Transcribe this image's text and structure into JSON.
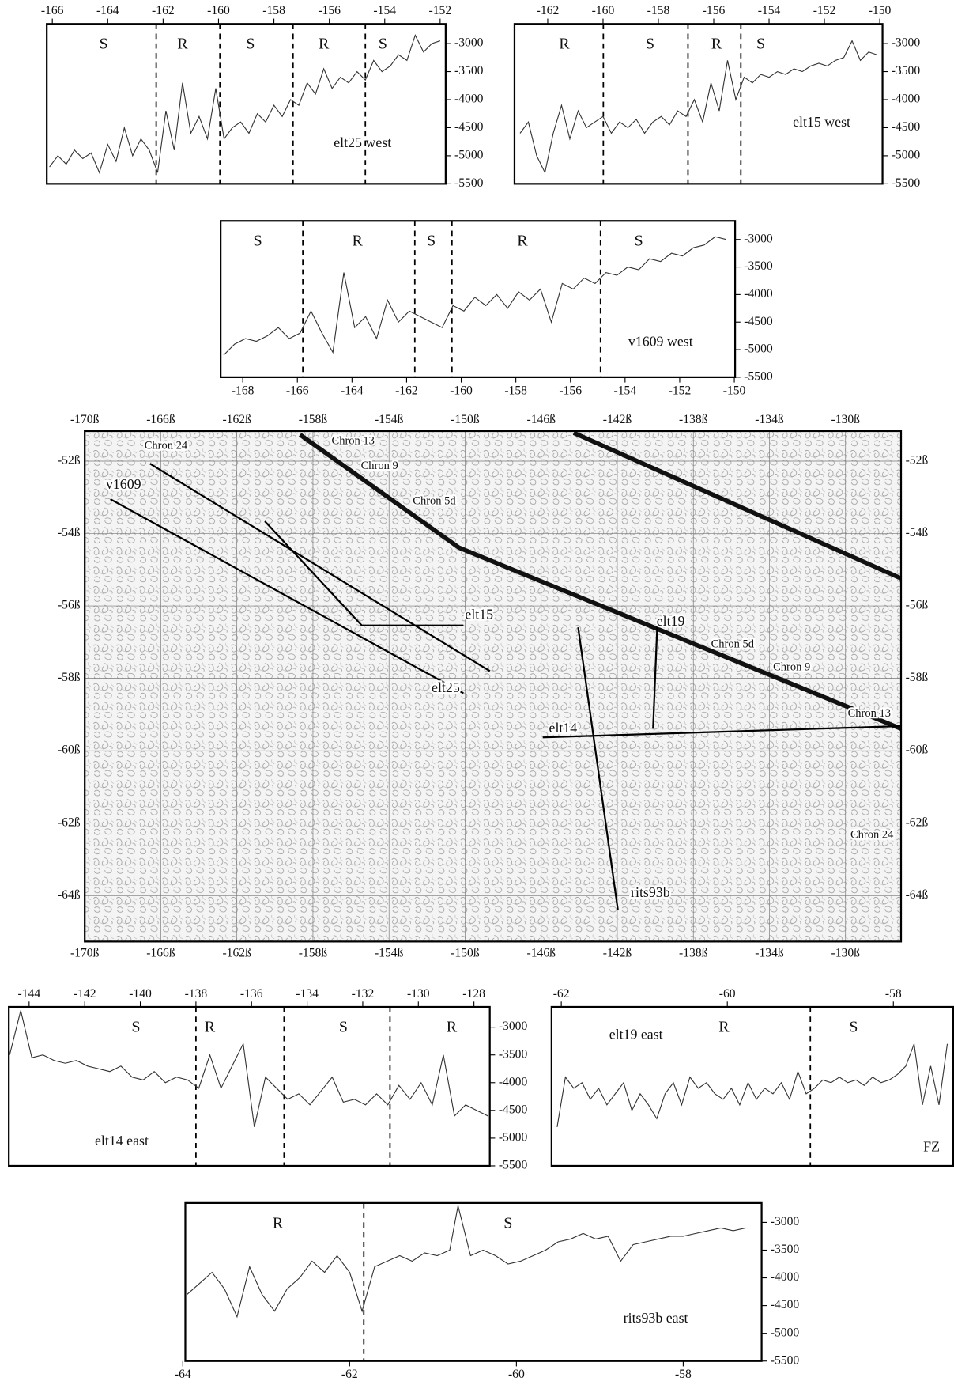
{
  "chart_data": [
    {
      "type": "line",
      "x_axis": "top",
      "color": "#333333",
      "xlim": [
        -166.2,
        -151.8
      ],
      "ylim": [
        -5500,
        -2650
      ],
      "xticks": [
        -166,
        -164,
        -162,
        -160,
        -158,
        -156,
        -154,
        -152
      ],
      "yticks": [
        -3000,
        -3500,
        -4000,
        -4500,
        -5000,
        -5500
      ],
      "boundaries": [
        -162.25,
        -159.95,
        -157.31,
        -154.7
      ],
      "segments": [
        {
          "text": "S",
          "x": -164.15
        },
        {
          "text": "R",
          "x": -161.3
        },
        {
          "text": "S",
          "x": -158.85
        },
        {
          "text": "R",
          "x": -156.2
        },
        {
          "text": "S",
          "x": -154.07
        }
      ],
      "label": {
        "text": "elt25 west",
        "x": -154.8,
        "y": -4790
      },
      "x": [
        -166.1,
        -165.8,
        -165.5,
        -165.2,
        -164.9,
        -164.6,
        -164.3,
        -164.0,
        -163.7,
        -163.4,
        -163.1,
        -162.8,
        -162.5,
        -162.2,
        -161.9,
        -161.6,
        -161.3,
        -161.0,
        -160.7,
        -160.4,
        -160.1,
        -159.8,
        -159.5,
        -159.2,
        -158.9,
        -158.6,
        -158.3,
        -158.0,
        -157.7,
        -157.4,
        -157.1,
        -156.8,
        -156.5,
        -156.2,
        -155.9,
        -155.6,
        -155.3,
        -155.0,
        -154.7,
        -154.4,
        -154.1,
        -153.8,
        -153.5,
        -153.2,
        -152.9,
        -152.6,
        -152.3,
        -152.0
      ],
      "values": [
        -5200,
        -5000,
        -5150,
        -4900,
        -5050,
        -4950,
        -5300,
        -4800,
        -5100,
        -4500,
        -5000,
        -4700,
        -4900,
        -5300,
        -4200,
        -4900,
        -3700,
        -4600,
        -4300,
        -4700,
        -3800,
        -4700,
        -4500,
        -4400,
        -4600,
        -4250,
        -4400,
        -4100,
        -4300,
        -4000,
        -4100,
        -3700,
        -3900,
        -3450,
        -3800,
        -3600,
        -3700,
        -3500,
        -3650,
        -3300,
        -3500,
        -3400,
        -3200,
        -3300,
        -2850,
        -3150,
        -3000,
        -2950
      ]
    },
    {
      "type": "line",
      "x_axis": "top",
      "color": "#333333",
      "xlim": [
        -163.2,
        -149.9
      ],
      "ylim": [
        -5500,
        -2650
      ],
      "xticks": [
        -162,
        -160,
        -158,
        -156,
        -154,
        -152,
        -150
      ],
      "boundaries": [
        -159.99,
        -156.93,
        -155.02
      ],
      "segments": [
        {
          "text": "R",
          "x": -161.4
        },
        {
          "text": "S",
          "x": -158.3
        },
        {
          "text": "R",
          "x": -155.9
        },
        {
          "text": "S",
          "x": -154.3
        }
      ],
      "label": {
        "text": "elt15 west",
        "x": -152.1,
        "y": -4420
      },
      "x": [
        -163.0,
        -162.7,
        -162.4,
        -162.1,
        -161.8,
        -161.5,
        -161.2,
        -160.9,
        -160.6,
        -160.3,
        -160.0,
        -159.7,
        -159.4,
        -159.1,
        -158.8,
        -158.5,
        -158.2,
        -157.9,
        -157.6,
        -157.3,
        -157.0,
        -156.7,
        -156.4,
        -156.1,
        -155.8,
        -155.5,
        -155.2,
        -154.9,
        -154.6,
        -154.3,
        -154.0,
        -153.7,
        -153.4,
        -153.1,
        -152.8,
        -152.5,
        -152.2,
        -151.9,
        -151.6,
        -151.3,
        -151.0,
        -150.7,
        -150.4,
        -150.1
      ],
      "values": [
        -4600,
        -4400,
        -5000,
        -5300,
        -4600,
        -4100,
        -4700,
        -4200,
        -4500,
        -4400,
        -4300,
        -4600,
        -4400,
        -4500,
        -4350,
        -4600,
        -4400,
        -4300,
        -4450,
        -4200,
        -4300,
        -4000,
        -4400,
        -3700,
        -4200,
        -3300,
        -4000,
        -3600,
        -3700,
        -3550,
        -3600,
        -3500,
        -3550,
        -3450,
        -3500,
        -3400,
        -3350,
        -3400,
        -3300,
        -3250,
        -2950,
        -3300,
        -3150,
        -3200
      ],
      "yticks": [
        -3000,
        -3500,
        -4000,
        -4500,
        -5000,
        -5500
      ]
    },
    {
      "type": "line",
      "x_axis": "bottom",
      "color": "#333333",
      "xlim": [
        -168.81,
        -149.97
      ],
      "ylim": [
        -5500,
        -2663
      ],
      "xticks": [
        -168,
        -166,
        -164,
        -162,
        -160,
        -158,
        -156,
        -154,
        -152,
        -150
      ],
      "yticks": [
        -3000,
        -3500,
        -4000,
        -4500,
        -5000,
        -5500
      ],
      "boundaries": [
        -165.8,
        -161.7,
        -160.34,
        -154.9
      ],
      "segments": [
        {
          "text": "S",
          "x": -167.45
        },
        {
          "text": "R",
          "x": -163.8
        },
        {
          "text": "S",
          "x": -161.1
        },
        {
          "text": "R",
          "x": -157.76
        },
        {
          "text": "S",
          "x": -153.5
        }
      ],
      "label": {
        "text": "v1609 west",
        "x": -152.7,
        "y": -4875
      },
      "x": [
        -168.7,
        -168.3,
        -167.9,
        -167.5,
        -167.1,
        -166.7,
        -166.3,
        -165.9,
        -165.5,
        -165.1,
        -164.7,
        -164.3,
        -163.9,
        -163.5,
        -163.1,
        -162.7,
        -162.3,
        -161.9,
        -161.5,
        -161.1,
        -160.7,
        -160.3,
        -159.9,
        -159.5,
        -159.1,
        -158.7,
        -158.3,
        -157.9,
        -157.5,
        -157.1,
        -156.7,
        -156.3,
        -155.9,
        -155.5,
        -155.1,
        -154.7,
        -154.3,
        -153.9,
        -153.5,
        -153.1,
        -152.7,
        -152.3,
        -151.9,
        -151.5,
        -151.1,
        -150.7,
        -150.3
      ],
      "values": [
        -5100,
        -4900,
        -4800,
        -4850,
        -4750,
        -4600,
        -4800,
        -4700,
        -4300,
        -4700,
        -5050,
        -3600,
        -4600,
        -4400,
        -4800,
        -4100,
        -4500,
        -4300,
        -4400,
        -4500,
        -4600,
        -4200,
        -4300,
        -4050,
        -4200,
        -4000,
        -4250,
        -3950,
        -4100,
        -3900,
        -4500,
        -3800,
        -3900,
        -3700,
        -3800,
        -3600,
        -3650,
        -3500,
        -3550,
        -3350,
        -3400,
        -3250,
        -3300,
        -3150,
        -3100,
        -2950,
        -3000
      ]
    },
    {
      "type": "map",
      "grid": true,
      "xlim": [
        -170,
        -127.08
      ],
      "ylim": [
        -65.27,
        -51.17
      ],
      "xticks": [
        {
          "value": -170,
          "label": "-170ß"
        },
        {
          "value": -166,
          "label": "-166ß"
        },
        {
          "value": -162,
          "label": "-162ß"
        },
        {
          "value": -158,
          "label": "-158ß"
        },
        {
          "value": -154,
          "label": "-154ß"
        },
        {
          "value": -150,
          "label": "-150ß"
        },
        {
          "value": -146,
          "label": "-146ß"
        },
        {
          "value": -142,
          "label": "-142ß"
        },
        {
          "value": -138,
          "label": "-138ß"
        },
        {
          "value": -134,
          "label": "-134ß"
        },
        {
          "value": -130,
          "label": "-130ß"
        }
      ],
      "yticks": [
        {
          "value": -52,
          "label": "-52ß"
        },
        {
          "value": -54,
          "label": "-54ß"
        },
        {
          "value": -56,
          "label": "-56ß"
        },
        {
          "value": -58,
          "label": "-58ß"
        },
        {
          "value": -60,
          "label": "-60ß"
        },
        {
          "value": -62,
          "label": "-62ß"
        },
        {
          "value": -64,
          "label": "-64ß"
        }
      ],
      "tracks": [
        {
          "lon": [
            -168.65,
            -150.09
          ],
          "lat": [
            -53.05,
            -58.41
          ]
        },
        {
          "lon": [
            -166.57,
            -148.7
          ],
          "lat": [
            -52.07,
            -57.8
          ]
        },
        {
          "lon": [
            -160.53,
            -155.43,
            -150.09
          ],
          "lat": [
            -53.66,
            -56.54,
            -56.54
          ]
        },
        {
          "lon": [
            -145.92,
            -127.08
          ],
          "lat": [
            -59.63,
            -59.32
          ]
        },
        {
          "lon": [
            -144.06,
            -141.97
          ],
          "lat": [
            -56.59,
            -64.39
          ]
        },
        {
          "lon": [
            -139.88,
            -140.12
          ],
          "lat": [
            -56.34,
            -59.39
          ]
        }
      ],
      "isochrons": [
        {
          "lon": [
            -158.68,
            -150.32,
            -127.08
          ],
          "lat": [
            -51.27,
            -54.39,
            -59.39
          ]
        },
        {
          "lon": [
            -144.29,
            -127.08
          ],
          "lat": [
            -51.22,
            -55.24
          ]
        }
      ],
      "annotations": [
        {
          "text": "v1609",
          "lon": -167.96,
          "lat": -52.68
        },
        {
          "text": "elt15",
          "lon": -149.26,
          "lat": -56.27
        },
        {
          "text": "elt25",
          "lon": -151.02,
          "lat": -58.29
        },
        {
          "text": "elt14",
          "lon": -144.85,
          "lat": -59.41
        },
        {
          "text": "elt19",
          "lon": -139.19,
          "lat": -56.46
        },
        {
          "text": "rits93b",
          "lon": -140.26,
          "lat": -63.95
        },
        {
          "text": "Chron 24",
          "lon": -165.73,
          "lat": -51.59
        },
        {
          "text": "Chron 13",
          "lon": -155.89,
          "lat": -51.46
        },
        {
          "text": "Chron 9",
          "lon": -154.5,
          "lat": -52.15
        },
        {
          "text": "Chron 5d",
          "lon": -151.62,
          "lat": -53.12
        },
        {
          "text": "Chron 5d",
          "lon": -135.94,
          "lat": -57.07
        },
        {
          "text": "Chron 9",
          "lon": -132.83,
          "lat": -57.71
        },
        {
          "text": "Chron 13",
          "lon": -128.75,
          "lat": -58.98
        },
        {
          "text": "Chron 24",
          "lon": -128.61,
          "lat": -62.34
        }
      ]
    },
    {
      "type": "line",
      "x_axis": "top",
      "color": "#333333",
      "xlim": [
        -144.73,
        -127.43
      ],
      "ylim": [
        -5500,
        -2634
      ],
      "xticks": [
        -144,
        -142,
        -140,
        -138,
        -136,
        -134,
        -132,
        -130,
        -128
      ],
      "yticks": [
        -3000,
        -3500,
        -4000,
        -4500,
        -5000,
        -5500
      ],
      "boundaries": [
        -138.0,
        -134.83,
        -131.02
      ],
      "segments": [
        {
          "text": "S",
          "x": -140.16
        },
        {
          "text": "R",
          "x": -137.5
        },
        {
          "text": "S",
          "x": -132.7
        },
        {
          "text": "R",
          "x": -128.8
        }
      ],
      "label": {
        "text": "elt14 east",
        "x": -140.67,
        "y": -5070
      },
      "x": [
        -144.7,
        -144.3,
        -143.9,
        -143.5,
        -143.1,
        -142.7,
        -142.3,
        -141.9,
        -141.5,
        -141.1,
        -140.7,
        -140.3,
        -139.9,
        -139.5,
        -139.1,
        -138.7,
        -138.3,
        -137.9,
        -137.5,
        -137.1,
        -136.7,
        -136.3,
        -135.9,
        -135.5,
        -135.1,
        -134.7,
        -134.3,
        -133.9,
        -133.5,
        -133.1,
        -132.7,
        -132.3,
        -131.9,
        -131.5,
        -131.1,
        -130.7,
        -130.3,
        -129.9,
        -129.5,
        -129.1,
        -128.7,
        -128.3,
        -127.9,
        -127.5
      ],
      "values": [
        -3500,
        -2700,
        -3550,
        -3500,
        -3600,
        -3650,
        -3600,
        -3700,
        -3750,
        -3800,
        -3700,
        -3900,
        -3950,
        -3800,
        -4000,
        -3900,
        -3950,
        -4100,
        -3500,
        -4100,
        -3700,
        -3300,
        -4800,
        -3900,
        -4100,
        -4300,
        -4200,
        -4400,
        -4150,
        -3900,
        -4350,
        -4300,
        -4400,
        -4200,
        -4400,
        -4050,
        -4300,
        -4000,
        -4400,
        -3500,
        -4600,
        -4400,
        -4500,
        -4600
      ]
    },
    {
      "type": "line",
      "x_axis": "top",
      "color": "#333333",
      "xlim": [
        -62.117,
        -57.28
      ],
      "ylim": [
        -5500,
        -2634
      ],
      "xticks": [
        -62,
        -60,
        -58
      ],
      "boundaries": [
        -59.0
      ],
      "segments": [
        {
          "text": "R",
          "x": -60.04
        },
        {
          "text": "S",
          "x": -58.48
        }
      ],
      "label": {
        "text": "elt19 east",
        "x": -61.1,
        "y": -3150
      },
      "note_label": {
        "text": "FZ",
        "x": -57.54,
        "y": -5180
      },
      "x": [
        -62.05,
        -61.95,
        -61.85,
        -61.75,
        -61.65,
        -61.55,
        -61.45,
        -61.35,
        -61.25,
        -61.15,
        -61.05,
        -60.95,
        -60.85,
        -60.75,
        -60.65,
        -60.55,
        -60.45,
        -60.35,
        -60.25,
        -60.15,
        -60.05,
        -59.95,
        -59.85,
        -59.75,
        -59.65,
        -59.55,
        -59.45,
        -59.35,
        -59.25,
        -59.15,
        -59.05,
        -58.95,
        -58.85,
        -58.75,
        -58.65,
        -58.55,
        -58.45,
        -58.35,
        -58.25,
        -58.15,
        -58.05,
        -57.95,
        -57.85,
        -57.75,
        -57.65,
        -57.55,
        -57.45,
        -57.35
      ],
      "values": [
        -4800,
        -3900,
        -4100,
        -4000,
        -4300,
        -4100,
        -4400,
        -4200,
        -4000,
        -4500,
        -4200,
        -4400,
        -4650,
        -4200,
        -4000,
        -4400,
        -3900,
        -4100,
        -4000,
        -4200,
        -4300,
        -4100,
        -4400,
        -4000,
        -4300,
        -4100,
        -4200,
        -4000,
        -4300,
        -3800,
        -4200,
        -4100,
        -3950,
        -4000,
        -3900,
        -4000,
        -3950,
        -4050,
        -3900,
        -4000,
        -3950,
        -3850,
        -3700,
        -3300,
        -4400,
        -3700,
        -4400,
        -3300
      ]
    },
    {
      "type": "line",
      "x_axis": "bottom",
      "color": "#333333",
      "xlim": [
        -63.97,
        -57.06
      ],
      "ylim": [
        -5500,
        -2650
      ],
      "xticks": [
        -64,
        -62,
        -60,
        -58
      ],
      "yticks": [
        -3000,
        -3500,
        -4000,
        -4500,
        -5000,
        -5500
      ],
      "boundaries": [
        -61.83
      ],
      "segments": [
        {
          "text": "R",
          "x": -62.86
        },
        {
          "text": "S",
          "x": -60.1
        }
      ],
      "label": {
        "text": "rits93b east",
        "x": -58.33,
        "y": -4750
      },
      "x": [
        -63.95,
        -63.8,
        -63.65,
        -63.5,
        -63.35,
        -63.2,
        -63.05,
        -62.9,
        -62.75,
        -62.6,
        -62.45,
        -62.3,
        -62.15,
        -62.0,
        -61.85,
        -61.7,
        -61.55,
        -61.4,
        -61.25,
        -61.1,
        -60.95,
        -60.8,
        -60.7,
        -60.55,
        -60.4,
        -60.25,
        -60.1,
        -59.95,
        -59.8,
        -59.65,
        -59.5,
        -59.35,
        -59.2,
        -59.05,
        -58.9,
        -58.75,
        -58.6,
        -58.45,
        -58.3,
        -58.15,
        -58.0,
        -57.85,
        -57.7,
        -57.55,
        -57.4,
        -57.25
      ],
      "values": [
        -4300,
        -4100,
        -3900,
        -4200,
        -4700,
        -3800,
        -4300,
        -4600,
        -4200,
        -4000,
        -3700,
        -3900,
        -3600,
        -3900,
        -4600,
        -3800,
        -3700,
        -3600,
        -3700,
        -3550,
        -3600,
        -3500,
        -2700,
        -3600,
        -3500,
        -3600,
        -3750,
        -3700,
        -3600,
        -3500,
        -3350,
        -3300,
        -3200,
        -3300,
        -3250,
        -3700,
        -3400,
        -3350,
        -3300,
        -3250,
        -3250,
        -3200,
        -3150,
        -3100,
        -3150,
        -3100
      ]
    }
  ]
}
